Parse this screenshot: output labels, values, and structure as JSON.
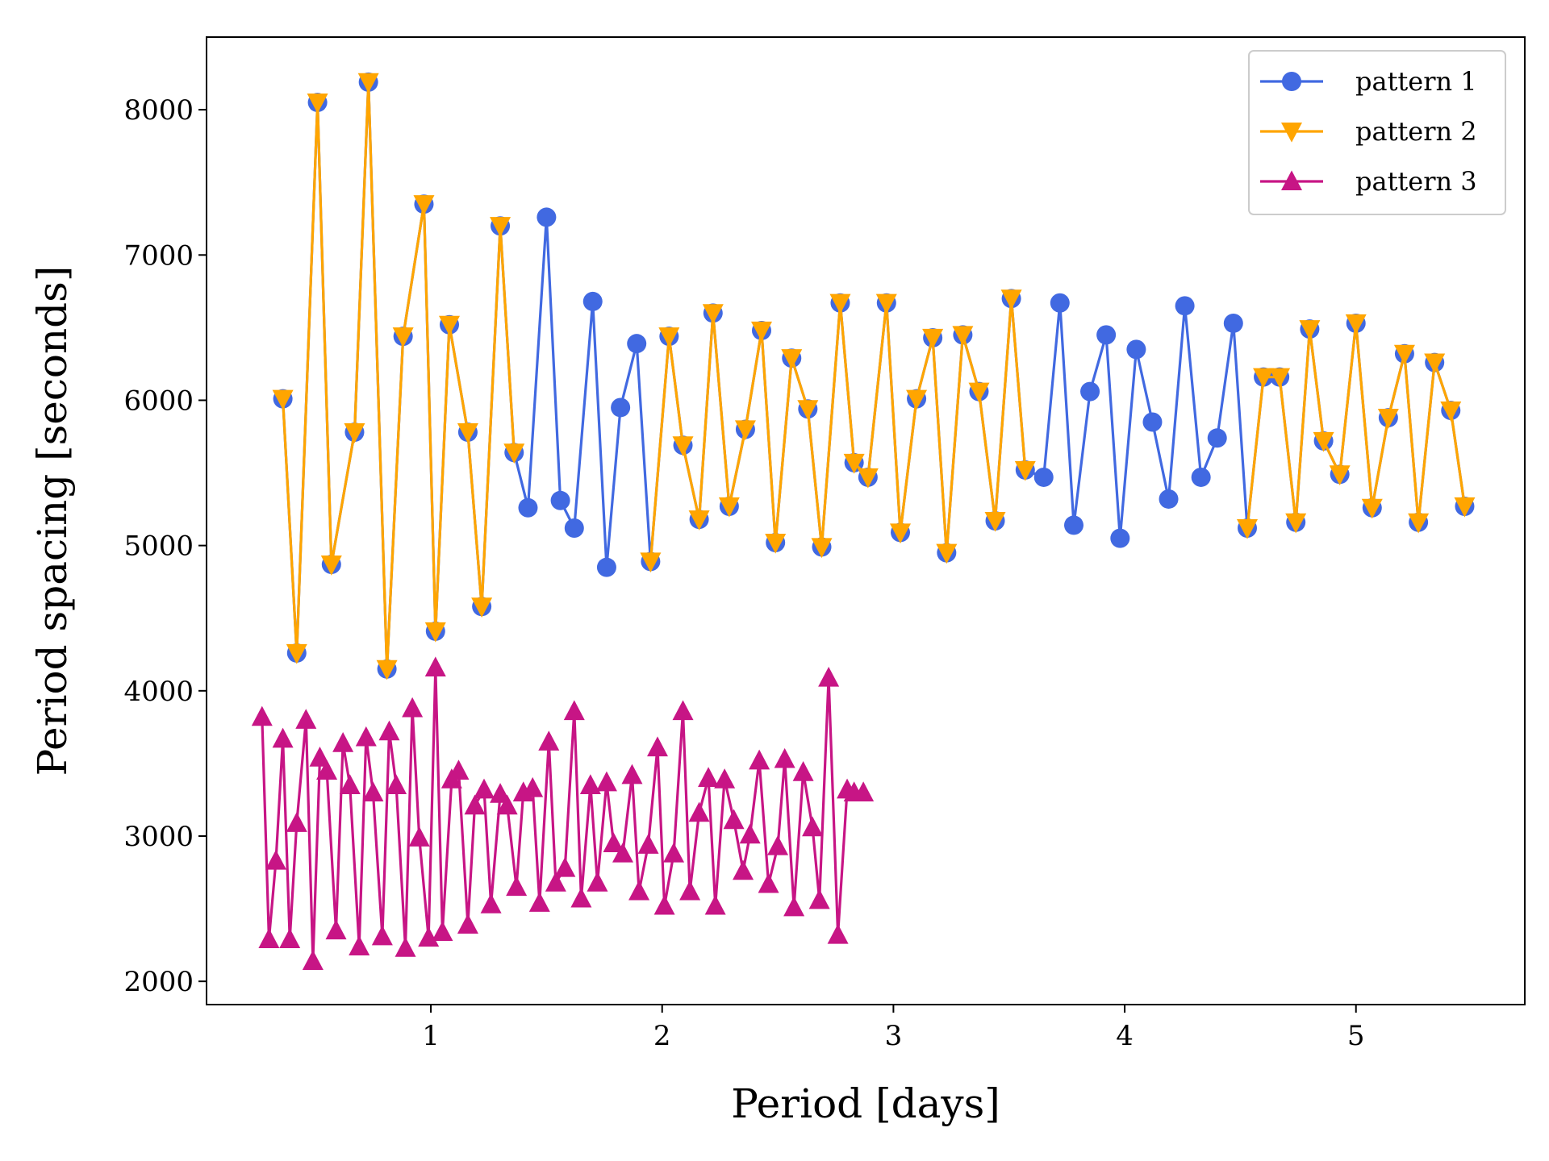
{
  "chart_data": {
    "type": "line",
    "title": "",
    "xlabel": "Period [days]",
    "ylabel": "Period spacing [seconds]",
    "xlim": [
      0.03,
      5.73
    ],
    "ylim": [
      1840,
      8500
    ],
    "xticks": [
      1,
      2,
      3,
      4,
      5
    ],
    "yticks": [
      2000,
      3000,
      4000,
      5000,
      6000,
      7000,
      8000
    ],
    "grid": false,
    "legend": {
      "placement": "top-right"
    },
    "series": [
      {
        "name": "pattern 1",
        "color": "#4169E1",
        "marker": "circle",
        "x": [
          0.36,
          0.42,
          0.51,
          0.57,
          0.67,
          0.73,
          0.81,
          0.88,
          0.97,
          1.02,
          1.08,
          1.16,
          1.22,
          1.3,
          1.36,
          1.42,
          1.5,
          1.56,
          1.62,
          1.7,
          1.76,
          1.82,
          1.89,
          1.95,
          2.03,
          2.09,
          2.16,
          2.22,
          2.29,
          2.36,
          2.43,
          2.49,
          2.56,
          2.63,
          2.69,
          2.77,
          2.83,
          2.89,
          2.97,
          3.03,
          3.1,
          3.17,
          3.23,
          3.3,
          3.37,
          3.44,
          3.51,
          3.57,
          3.65,
          3.72,
          3.78,
          3.85,
          3.92,
          3.98,
          4.05,
          4.12,
          4.19,
          4.26,
          4.33,
          4.4,
          4.47,
          4.53,
          4.6,
          4.67,
          4.74,
          4.8,
          4.86,
          4.93,
          5.0,
          5.07,
          5.14,
          5.21,
          5.27,
          5.34,
          5.41,
          5.47
        ],
        "y": [
          6010,
          4260,
          8050,
          4870,
          5780,
          8190,
          4150,
          6440,
          7350,
          4410,
          6520,
          5780,
          4580,
          7200,
          5640,
          5260,
          7260,
          5310,
          5120,
          6680,
          4850,
          5950,
          6390,
          4890,
          6440,
          5690,
          5180,
          6600,
          5270,
          5800,
          6480,
          5020,
          6290,
          5940,
          4990,
          6670,
          5570,
          5470,
          6670,
          5090,
          6010,
          6430,
          4950,
          6450,
          6060,
          5170,
          6700,
          5520,
          5470,
          6670,
          5140,
          6060,
          6450,
          5050,
          6350,
          5850,
          5320,
          6650,
          5470,
          5740,
          6530,
          5120,
          6160,
          6160,
          5160,
          6490,
          5720,
          5490,
          6530,
          5260,
          5880,
          6320,
          5160,
          6260,
          5930,
          5270
        ]
      },
      {
        "name": "pattern 2",
        "color": "#FFA500",
        "marker": "triangle-down",
        "segments": [
          {
            "x": [
              0.36,
              0.42,
              0.51,
              0.57,
              0.67,
              0.73,
              0.81,
              0.88,
              0.97,
              1.02,
              1.08,
              1.16,
              1.22,
              1.3,
              1.36
            ],
            "y": [
              6010,
              4260,
              8050,
              4870,
              5780,
              8190,
              4150,
              6440,
              7350,
              4410,
              6520,
              5780,
              4580,
              7200,
              5640
            ]
          },
          {
            "x": [
              1.95,
              2.03,
              2.09,
              2.16,
              2.22,
              2.29,
              2.36,
              2.43,
              2.49,
              2.56,
              2.63,
              2.69,
              2.77,
              2.83,
              2.89,
              2.97,
              3.03,
              3.1,
              3.17,
              3.23,
              3.3,
              3.37,
              3.44,
              3.51,
              3.57
            ],
            "y": [
              4890,
              6440,
              5690,
              5180,
              6600,
              5270,
              5800,
              6480,
              5020,
              6290,
              5940,
              4990,
              6670,
              5570,
              5470,
              6670,
              5090,
              6010,
              6430,
              4950,
              6450,
              6060,
              5170,
              6700,
              5520
            ]
          },
          {
            "x": [
              4.53,
              4.6,
              4.67,
              4.74,
              4.8,
              4.86,
              4.93,
              5.0,
              5.07,
              5.14,
              5.21,
              5.27,
              5.34,
              5.41,
              5.47
            ],
            "y": [
              5120,
              6160,
              6160,
              5160,
              6490,
              5720,
              5490,
              6530,
              5260,
              5880,
              6320,
              5160,
              6260,
              5930,
              5270
            ]
          }
        ]
      },
      {
        "name": "pattern 3",
        "color": "#C71585",
        "marker": "triangle-up",
        "x": [
          0.27,
          0.3,
          0.33,
          0.36,
          0.39,
          0.42,
          0.46,
          0.49,
          0.52,
          0.55,
          0.59,
          0.62,
          0.65,
          0.69,
          0.72,
          0.75,
          0.79,
          0.82,
          0.85,
          0.89,
          0.92,
          0.95,
          0.99,
          1.02,
          1.05,
          1.09,
          1.12,
          1.16,
          1.19,
          1.23,
          1.26,
          1.3,
          1.33,
          1.37,
          1.4,
          1.44,
          1.47,
          1.51,
          1.54,
          1.58,
          1.62,
          1.65,
          1.69,
          1.72,
          1.76,
          1.79,
          1.83,
          1.87,
          1.9,
          1.94,
          1.98,
          2.01,
          2.05,
          2.09,
          2.12,
          2.16,
          2.2,
          2.23,
          2.27,
          2.31,
          2.35,
          2.38,
          2.42,
          2.46,
          2.5,
          2.53,
          2.57,
          2.61,
          2.65,
          2.68,
          2.72,
          2.76,
          2.8,
          2.83,
          2.87
        ],
        "y": [
          3820,
          2290,
          2830,
          3670,
          2290,
          3090,
          3800,
          2140,
          3540,
          3450,
          2350,
          3640,
          3350,
          2240,
          3680,
          3300,
          2310,
          3720,
          3350,
          2230,
          3880,
          2990,
          2300,
          4160,
          2340,
          3390,
          3450,
          2390,
          3210,
          3320,
          2530,
          3290,
          3210,
          2650,
          3300,
          3330,
          2540,
          3650,
          2680,
          2780,
          3860,
          2570,
          3350,
          2680,
          3370,
          2950,
          2880,
          3420,
          2620,
          2940,
          3610,
          2520,
          2880,
          3860,
          2620,
          3160,
          3400,
          2520,
          3390,
          3110,
          2760,
          3010,
          3520,
          2670,
          2930,
          3530,
          2510,
          3440,
          3060,
          2560,
          4090,
          2320,
          3320,
          3300,
          3300
        ]
      }
    ]
  }
}
